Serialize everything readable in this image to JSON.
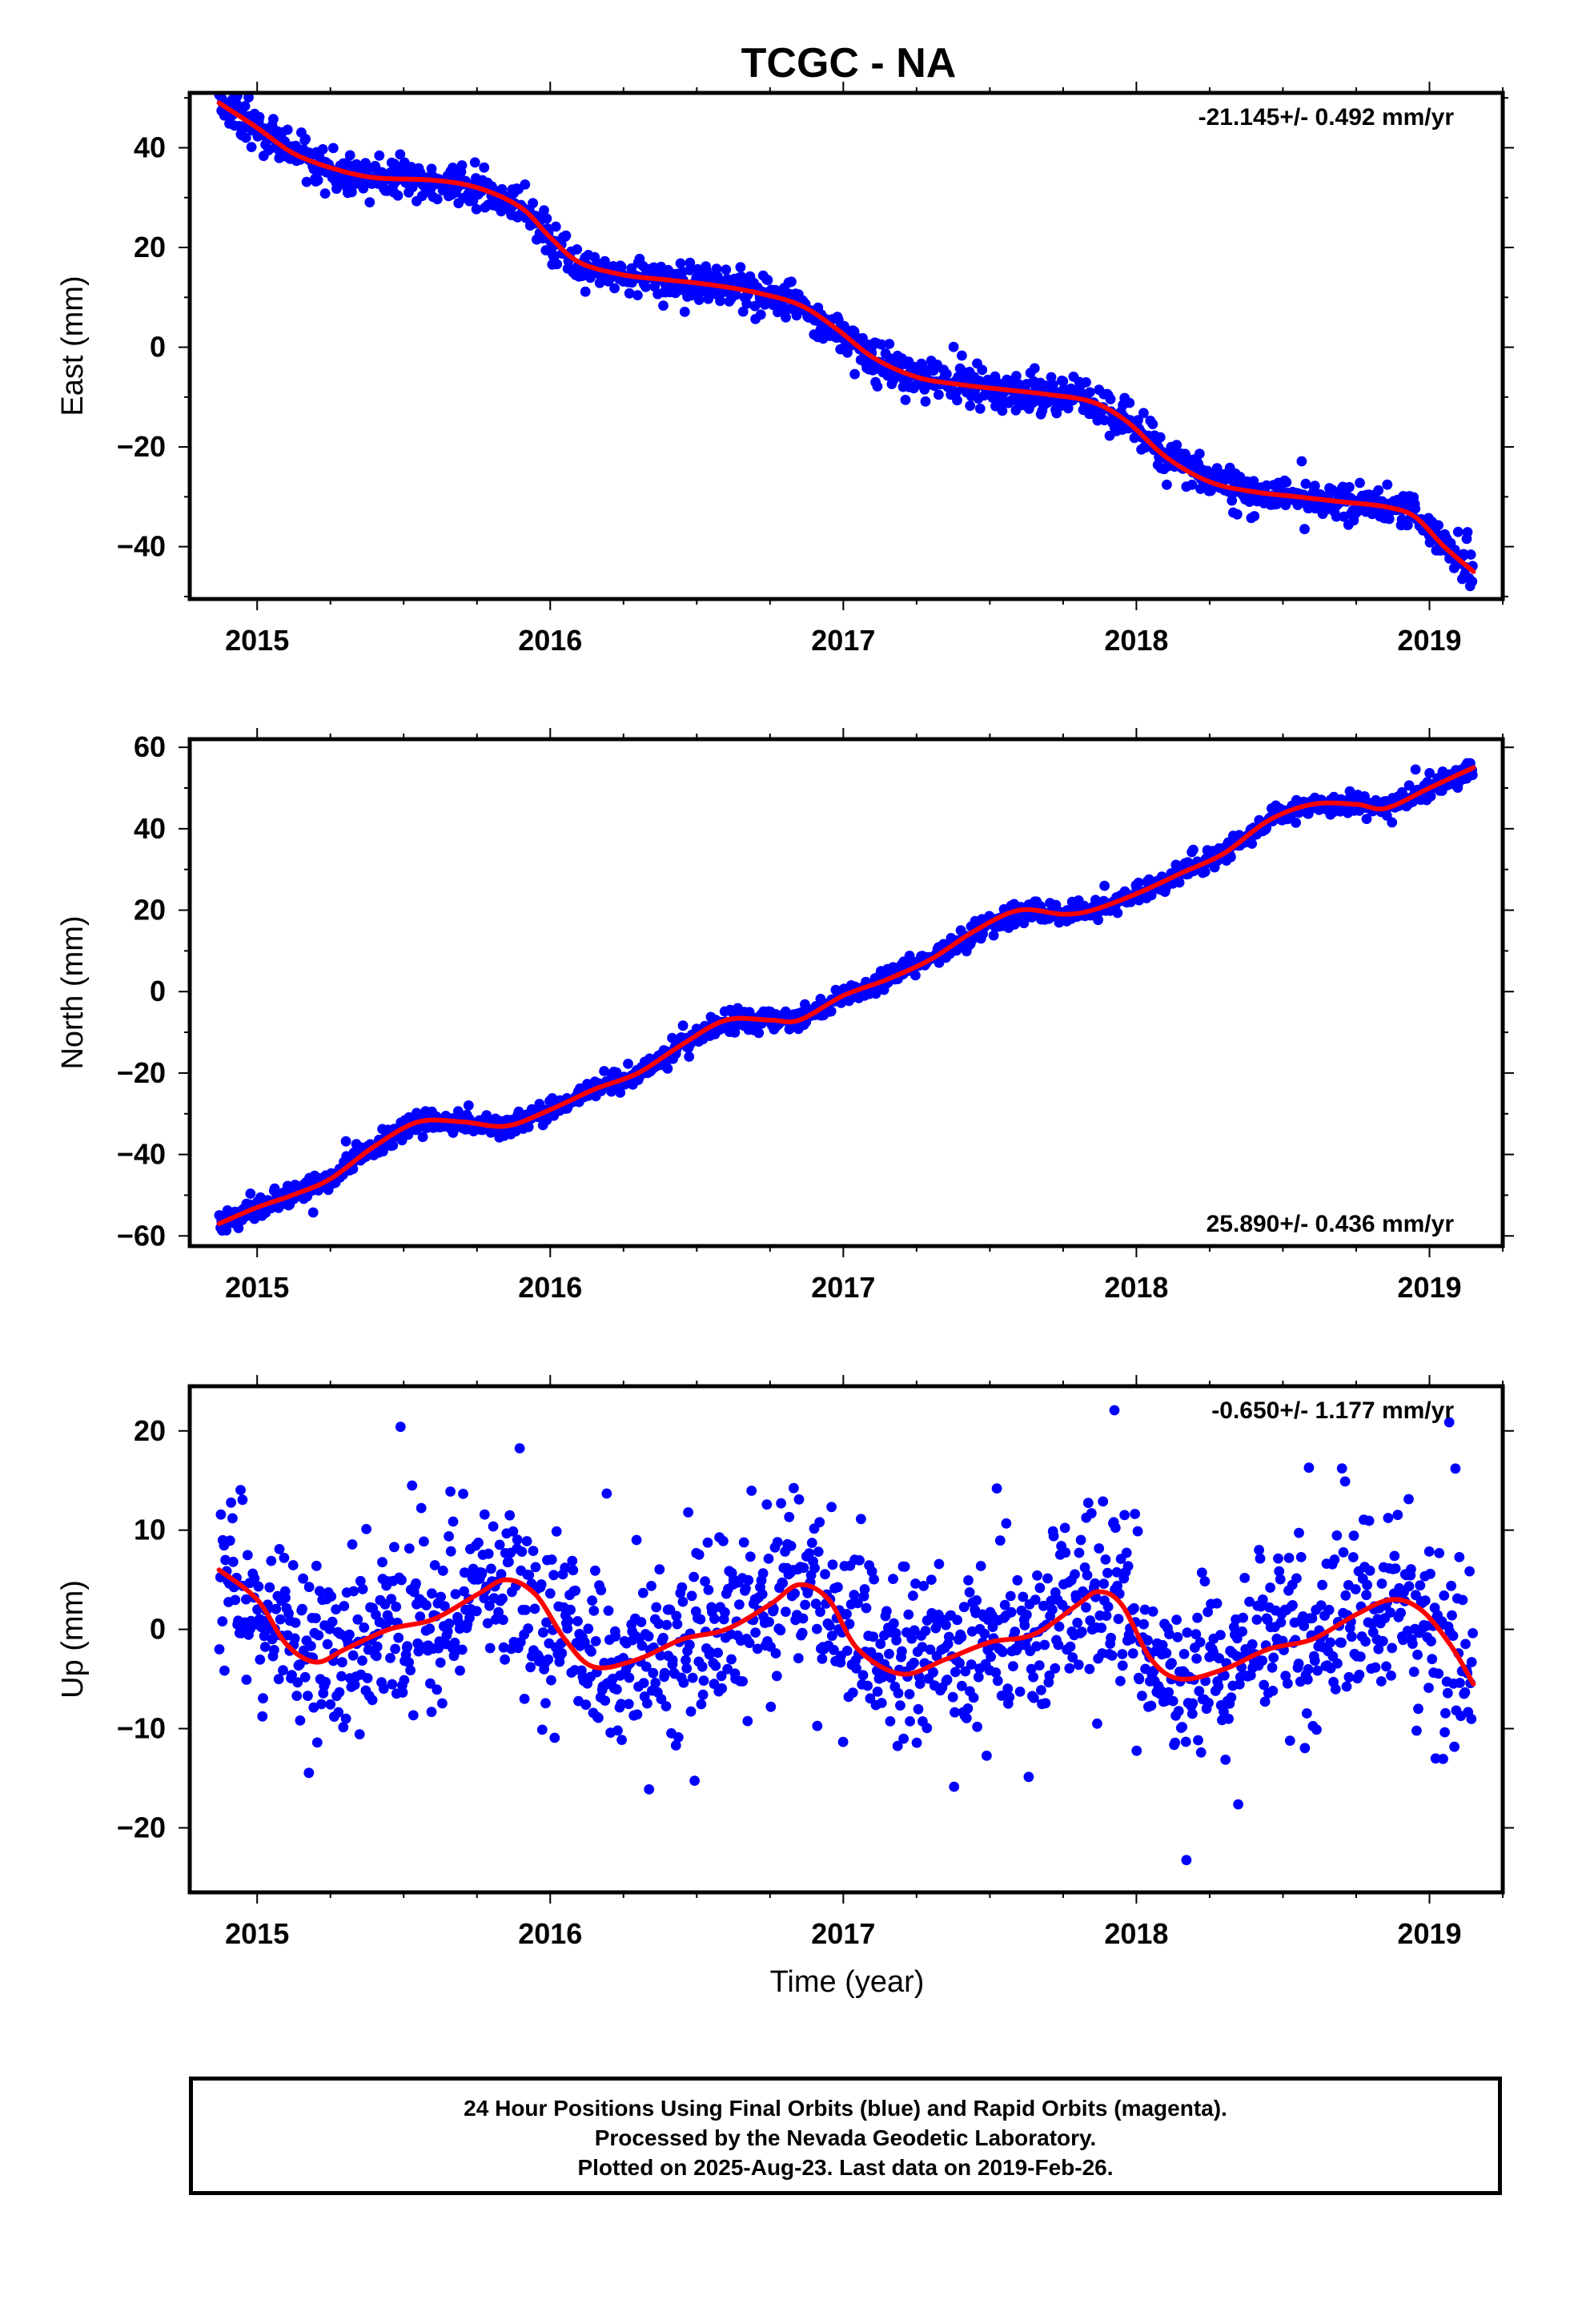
{
  "title": "TCGC - NA",
  "xlabel": "Time (year)",
  "footer": {
    "line1": "24 Hour Positions Using Final Orbits (blue) and Rapid Orbits (magenta).",
    "line2": "Processed by the Nevada Geodetic Laboratory.",
    "line3": "Plotted on 2025-Aug-23. Last data on 2019-Feb-26."
  },
  "colors": {
    "final_orbits": "#0000ff",
    "rapid_orbits": "#ff00ff",
    "model_fit": "#ff0000",
    "frame": "#000000"
  },
  "chart_data": [
    {
      "type": "scatter",
      "component": "east",
      "ylabel": "East (mm)",
      "rate_label": "-21.145+/- 0.492 mm/yr",
      "rate_position": "top-right",
      "xlim": [
        2014.77,
        2019.25
      ],
      "ylim": [
        -50.5,
        51
      ],
      "xticks": [
        2015,
        2016,
        2017,
        2018,
        2019
      ],
      "yticks": [
        -40,
        -20,
        0,
        20,
        40
      ],
      "fit_series": {
        "name": "model",
        "x": [
          2014.87,
          2015.0,
          2015.12,
          2015.25,
          2015.4,
          2015.6,
          2015.75,
          2015.9,
          2016.0,
          2016.1,
          2016.25,
          2016.4,
          2016.55,
          2016.7,
          2016.85,
          2016.97,
          2017.1,
          2017.25,
          2017.4,
          2017.55,
          2017.7,
          2017.85,
          2017.97,
          2018.1,
          2018.25,
          2018.4,
          2018.55,
          2018.7,
          2018.85,
          2018.95,
          2019.05,
          2019.15
        ],
        "y": [
          49,
          44,
          39,
          36,
          34,
          33.5,
          32,
          28,
          22,
          17,
          14.5,
          13.5,
          12.5,
          11,
          8.5,
          4,
          -2,
          -6,
          -7.5,
          -8.5,
          -9.5,
          -11,
          -15,
          -22,
          -27,
          -29,
          -30,
          -31,
          -32,
          -34,
          -40,
          -45
        ]
      },
      "scatter": {
        "n": 1380,
        "noise": 1.9,
        "outlier_fraction": 0.02
      }
    },
    {
      "type": "scatter",
      "component": "north",
      "ylabel": "North (mm)",
      "rate_label": "25.890+/- 0.436 mm/yr",
      "rate_position": "bottom-right",
      "xlim": [
        2014.77,
        2019.25
      ],
      "ylim": [
        -62.5,
        62
      ],
      "xticks": [
        2015,
        2016,
        2017,
        2018,
        2019
      ],
      "yticks": [
        -60,
        -40,
        -20,
        0,
        20,
        40,
        60
      ],
      "fit_series": {
        "name": "model",
        "x": [
          2014.87,
          2015.0,
          2015.12,
          2015.25,
          2015.4,
          2015.55,
          2015.7,
          2015.85,
          2016.0,
          2016.15,
          2016.3,
          2016.45,
          2016.6,
          2016.75,
          2016.85,
          2017.0,
          2017.15,
          2017.3,
          2017.45,
          2017.6,
          2017.75,
          2017.85,
          2018.0,
          2018.15,
          2018.3,
          2018.45,
          2018.6,
          2018.75,
          2018.85,
          2019.0,
          2019.15
        ],
        "y": [
          -57,
          -53,
          -50,
          -46,
          -38,
          -32,
          -32,
          -33,
          -29,
          -24,
          -20,
          -13,
          -7,
          -7,
          -7,
          -1,
          3,
          8,
          15,
          20,
          19,
          20,
          24,
          29,
          34,
          42,
          46,
          46,
          45,
          50,
          55
        ]
      },
      "scatter": {
        "n": 1380,
        "noise": 1.3,
        "outlier_fraction": 0.01
      }
    },
    {
      "type": "scatter",
      "component": "up",
      "ylabel": "Up (mm)",
      "rate_label": "-0.650+/- 1.177 mm/yr",
      "rate_position": "top-right",
      "xlim": [
        2014.77,
        2019.25
      ],
      "ylim": [
        -26.5,
        24.5
      ],
      "xticks": [
        2015,
        2016,
        2017,
        2018,
        2019
      ],
      "yticks": [
        -20,
        -10,
        0,
        10,
        20
      ],
      "fit_series": {
        "name": "model",
        "x": [
          2014.87,
          2015.0,
          2015.1,
          2015.2,
          2015.3,
          2015.45,
          2015.6,
          2015.75,
          2015.85,
          2015.95,
          2016.05,
          2016.15,
          2016.3,
          2016.45,
          2016.6,
          2016.75,
          2016.85,
          2016.95,
          2017.05,
          2017.2,
          2017.35,
          2017.5,
          2017.65,
          2017.8,
          2017.87,
          2017.95,
          2018.05,
          2018.15,
          2018.3,
          2018.45,
          2018.6,
          2018.75,
          2018.87,
          2018.97,
          2019.07,
          2019.15
        ],
        "y": [
          6,
          3,
          -1.5,
          -3.3,
          -2,
          0,
          1,
          3.5,
          5,
          3.5,
          -1,
          -3.8,
          -3,
          -1,
          0,
          2.5,
          4.5,
          3,
          -2,
          -4.5,
          -3,
          -1.3,
          -0.5,
          2.5,
          3.8,
          2.5,
          -3,
          -5,
          -4,
          -2,
          -1,
          1.5,
          3,
          2,
          -1.5,
          -5.5
        ]
      },
      "scatter": {
        "n": 1380,
        "noise": 4.3,
        "outlier_fraction": 0.04
      }
    }
  ]
}
